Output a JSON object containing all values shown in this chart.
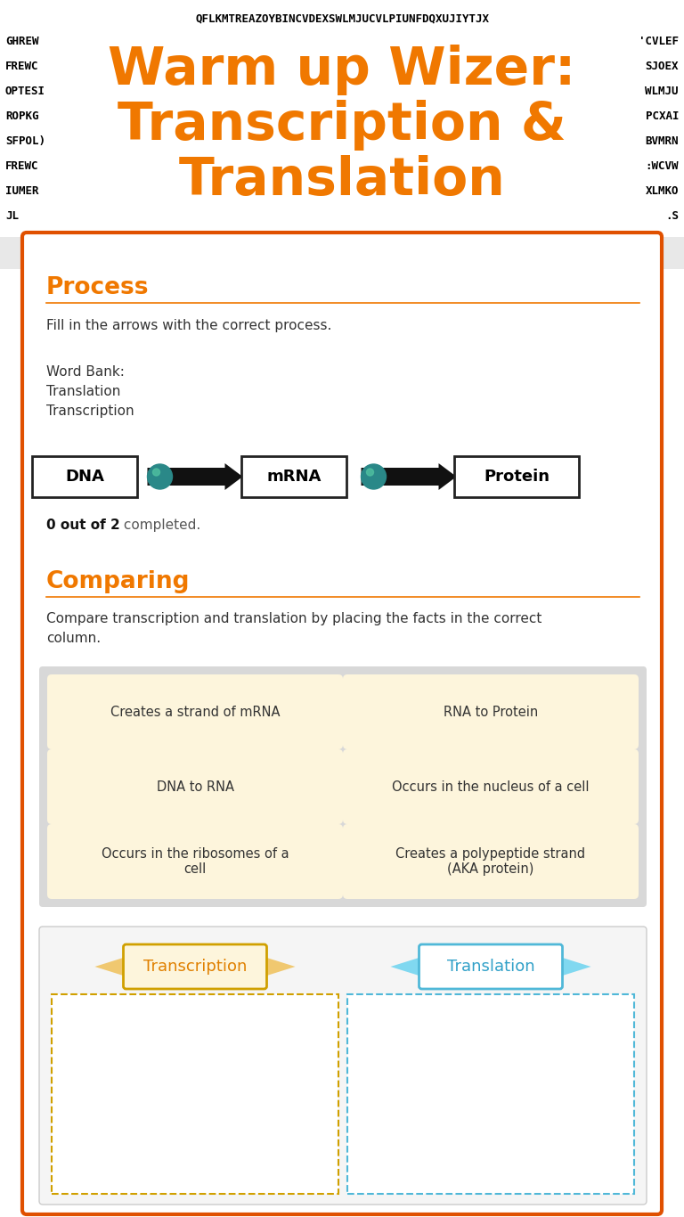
{
  "bg_color": "#e8e8e8",
  "white_bg": "#ffffff",
  "orange_color": "#f07800",
  "dark_text": "#333333",
  "card_border": "#e05000",
  "title_line1": "Warm up Wizer:",
  "title_line2": "Transcription &",
  "title_line3": "Translation",
  "top_row": "QFLKMTREAZOYBINCVDEXSWLMJUCVLPIUNFDQXUJIYTJX",
  "left_cols": [
    "GHREW",
    "FREWC",
    "OPTESI",
    "ROPKG",
    "SFPOL)",
    "FREWC",
    "IUMER",
    "JL"
  ],
  "right_cols": [
    "'CVLEF",
    "SJOEX",
    "WLMJU",
    "PCXAI",
    "BVMRN",
    ":WCVW",
    "XLMKO",
    ".S"
  ],
  "process_title": "Process",
  "process_instruction": "Fill in the arrows with the correct process.",
  "word_bank_label": "Word Bank:",
  "word_bank_items": [
    "Translation",
    "Transcription"
  ],
  "flow_items": [
    "DNA",
    "mRNA",
    "Protein"
  ],
  "completed_bold": "0 out of 2",
  "completed_rest": " completed.",
  "comparing_title": "Comparing",
  "comparing_instruction": "Compare transcription and translation by placing the facts in the correct\ncolumn.",
  "fact_cards": [
    [
      "Creates a strand of mRNA",
      "RNA to Protein"
    ],
    [
      "DNA to RNA",
      "Occurs in the nucleus of a cell"
    ],
    [
      "Occurs in the ribosomes of a\ncell",
      "Creates a polypeptide strand\n(AKA protein)"
    ]
  ],
  "fact_card_bg": "#fdf5dc",
  "fact_grid_bg": "#d8d8d8",
  "transcription_label": "Transcription",
  "translation_label": "Translation",
  "trans_ribbon_color": "#f0c870",
  "transl_ribbon_color": "#80d8f0",
  "trans_box_border": "#d0a000",
  "transl_box_border": "#50b8d8",
  "trans_text_color": "#e08000",
  "transl_text_color": "#30a0c8",
  "trans_box_bg": "#fdf5dc",
  "transl_box_bg": "#ffffff",
  "bottom_section_bg": "#e8e8e8",
  "bottom_card_border": "#e05000"
}
